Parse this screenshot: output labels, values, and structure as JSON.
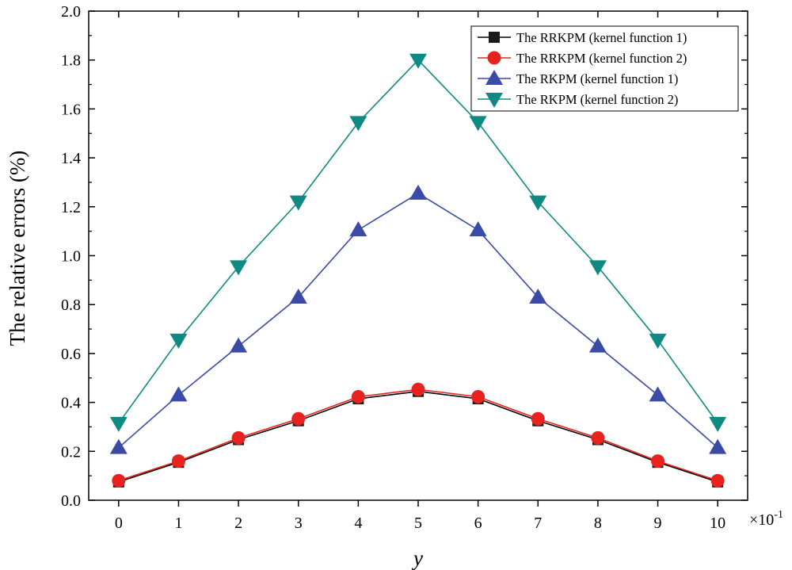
{
  "chart_data": {
    "type": "line",
    "title": "",
    "xlabel": "y",
    "x_multiplier": "×10",
    "x_multiplier_exp": "-1",
    "ylabel": "The relative errors (%)",
    "x": [
      0,
      1,
      2,
      3,
      4,
      5,
      6,
      7,
      8,
      9,
      10
    ],
    "xlim": [
      -0.5,
      10.5
    ],
    "ylim": [
      0.0,
      2.0
    ],
    "yticks": [
      "0.0",
      "0.2",
      "0.4",
      "0.6",
      "0.8",
      "1.0",
      "1.2",
      "1.4",
      "1.6",
      "1.8",
      "2.0"
    ],
    "xticks": [
      "0",
      "1",
      "2",
      "3",
      "4",
      "5",
      "6",
      "7",
      "8",
      "9",
      "10"
    ],
    "grid": false,
    "legend_position": "top-right",
    "series": [
      {
        "name": "The RRKPM (kernel function 1)",
        "color": "#000000",
        "marker": "square",
        "marker_color": "#1a1a1a",
        "values": [
          0.075,
          0.155,
          0.248,
          0.325,
          0.415,
          0.445,
          0.415,
          0.325,
          0.248,
          0.155,
          0.075
        ]
      },
      {
        "name": "The RRKPM (kernel function 2)",
        "color": "#e8231f",
        "marker": "circle",
        "marker_color": "#e8231f",
        "values": [
          0.08,
          0.16,
          0.255,
          0.333,
          0.423,
          0.453,
          0.423,
          0.333,
          0.255,
          0.16,
          0.08
        ]
      },
      {
        "name": "The RKPM (kernel function 1)",
        "color": "#3a4aa6",
        "marker": "triangle-up",
        "marker_color": "#3a4aa6",
        "values": [
          0.215,
          0.43,
          0.63,
          0.83,
          1.105,
          1.255,
          1.105,
          0.83,
          0.63,
          0.43,
          0.215
        ]
      },
      {
        "name": "The RKPM (kernel function 2)",
        "color": "#0f8a82",
        "marker": "triangle-down",
        "marker_color": "#0f8a82",
        "values": [
          0.315,
          0.655,
          0.955,
          1.22,
          1.545,
          1.8,
          1.545,
          1.22,
          0.955,
          0.655,
          0.315
        ]
      }
    ]
  }
}
